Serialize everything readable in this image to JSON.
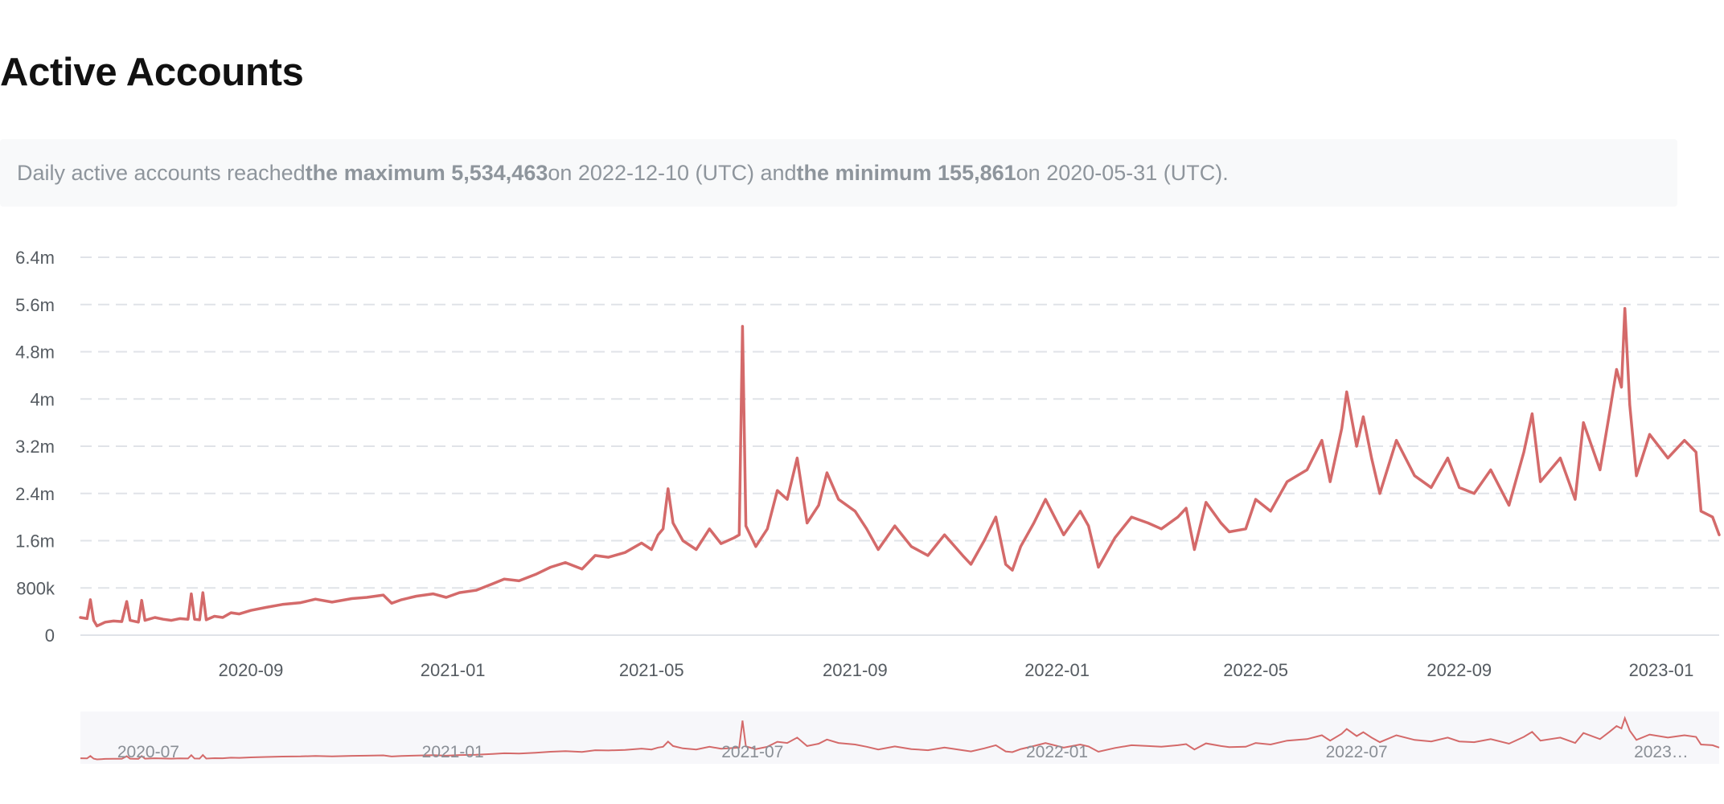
{
  "page": {
    "title": "Active Accounts",
    "summary": {
      "prefix": "Daily active accounts reached ",
      "max_label": "the maximum 5,534,463",
      "max_suffix": " on 2022-12-10 (UTC) and ",
      "min_label": "the minimum 155,861",
      "min_suffix": " on 2020-05-31 (UTC)."
    }
  },
  "colors": {
    "line": "#d46a6a",
    "grid": "#e0e3e8",
    "navigator_bg": "#f7f7fa",
    "navigator_line": "#d46a6a"
  },
  "chart_data": {
    "type": "line",
    "title": "",
    "xlabel": "",
    "ylabel": "",
    "x_range": [
      "2020-05-21",
      "2023-02-05"
    ],
    "ylim": [
      0,
      6400000
    ],
    "y_ticks": [
      0,
      800000,
      1600000,
      2400000,
      3200000,
      4000000,
      4800000,
      5600000,
      6400000
    ],
    "y_tick_labels": [
      "0",
      "800k",
      "1.6m",
      "2.4m",
      "3.2m",
      "4m",
      "4.8m",
      "5.6m",
      "6.4m"
    ],
    "x_ticks": [
      "2020-09-01",
      "2021-01-01",
      "2021-05-01",
      "2021-09-01",
      "2022-01-01",
      "2022-05-01",
      "2022-09-01",
      "2023-01-01"
    ],
    "x_tick_labels": [
      "2020-09",
      "2021-01",
      "2021-05",
      "2021-09",
      "2022-01",
      "2022-05",
      "2022-09",
      "2023-01"
    ],
    "grid": true,
    "series": [
      {
        "points": [
          [
            "2020-05-21",
            300000
          ],
          [
            "2020-05-25",
            280000
          ],
          [
            "2020-05-27",
            600000
          ],
          [
            "2020-05-29",
            250000
          ],
          [
            "2020-05-31",
            155861
          ],
          [
            "2020-06-05",
            220000
          ],
          [
            "2020-06-10",
            240000
          ],
          [
            "2020-06-15",
            230000
          ],
          [
            "2020-06-18",
            570000
          ],
          [
            "2020-06-20",
            250000
          ],
          [
            "2020-06-25",
            220000
          ],
          [
            "2020-06-27",
            590000
          ],
          [
            "2020-06-29",
            250000
          ],
          [
            "2020-07-05",
            300000
          ],
          [
            "2020-07-10",
            270000
          ],
          [
            "2020-07-15",
            250000
          ],
          [
            "2020-07-20",
            280000
          ],
          [
            "2020-07-25",
            270000
          ],
          [
            "2020-07-27",
            700000
          ],
          [
            "2020-07-29",
            270000
          ],
          [
            "2020-08-01",
            260000
          ],
          [
            "2020-08-03",
            720000
          ],
          [
            "2020-08-05",
            260000
          ],
          [
            "2020-08-10",
            320000
          ],
          [
            "2020-08-15",
            300000
          ],
          [
            "2020-08-20",
            380000
          ],
          [
            "2020-08-25",
            360000
          ],
          [
            "2020-09-01",
            420000
          ],
          [
            "2020-09-10",
            470000
          ],
          [
            "2020-09-20",
            520000
          ],
          [
            "2020-10-01",
            550000
          ],
          [
            "2020-10-10",
            610000
          ],
          [
            "2020-10-20",
            560000
          ],
          [
            "2020-11-01",
            620000
          ],
          [
            "2020-11-10",
            640000
          ],
          [
            "2020-11-20",
            680000
          ],
          [
            "2020-11-25",
            540000
          ],
          [
            "2020-12-01",
            600000
          ],
          [
            "2020-12-10",
            660000
          ],
          [
            "2020-12-20",
            700000
          ],
          [
            "2020-12-28",
            640000
          ],
          [
            "2021-01-05",
            720000
          ],
          [
            "2021-01-15",
            760000
          ],
          [
            "2021-01-25",
            870000
          ],
          [
            "2021-02-01",
            950000
          ],
          [
            "2021-02-10",
            920000
          ],
          [
            "2021-02-20",
            1030000
          ],
          [
            "2021-03-01",
            1150000
          ],
          [
            "2021-03-10",
            1230000
          ],
          [
            "2021-03-20",
            1120000
          ],
          [
            "2021-03-28",
            1350000
          ],
          [
            "2021-04-05",
            1320000
          ],
          [
            "2021-04-15",
            1400000
          ],
          [
            "2021-04-25",
            1560000
          ],
          [
            "2021-05-01",
            1450000
          ],
          [
            "2021-05-05",
            1700000
          ],
          [
            "2021-05-08",
            1800000
          ],
          [
            "2021-05-11",
            2480000
          ],
          [
            "2021-05-14",
            1900000
          ],
          [
            "2021-05-20",
            1600000
          ],
          [
            "2021-05-28",
            1450000
          ],
          [
            "2021-06-05",
            1800000
          ],
          [
            "2021-06-12",
            1550000
          ],
          [
            "2021-06-20",
            1650000
          ],
          [
            "2021-06-23",
            1700000
          ],
          [
            "2021-06-25",
            5230000
          ],
          [
            "2021-06-27",
            1850000
          ],
          [
            "2021-07-03",
            1500000
          ],
          [
            "2021-07-10",
            1800000
          ],
          [
            "2021-07-16",
            2450000
          ],
          [
            "2021-07-22",
            2300000
          ],
          [
            "2021-07-28",
            3000000
          ],
          [
            "2021-08-03",
            1900000
          ],
          [
            "2021-08-10",
            2200000
          ],
          [
            "2021-08-15",
            2750000
          ],
          [
            "2021-08-22",
            2300000
          ],
          [
            "2021-09-01",
            2100000
          ],
          [
            "2021-09-08",
            1800000
          ],
          [
            "2021-09-15",
            1450000
          ],
          [
            "2021-09-25",
            1850000
          ],
          [
            "2021-10-05",
            1500000
          ],
          [
            "2021-10-15",
            1350000
          ],
          [
            "2021-10-25",
            1700000
          ],
          [
            "2021-11-05",
            1350000
          ],
          [
            "2021-11-10",
            1200000
          ],
          [
            "2021-11-18",
            1600000
          ],
          [
            "2021-11-25",
            2000000
          ],
          [
            "2021-12-01",
            1200000
          ],
          [
            "2021-12-05",
            1100000
          ],
          [
            "2021-12-10",
            1500000
          ],
          [
            "2021-12-18",
            1900000
          ],
          [
            "2021-12-25",
            2300000
          ],
          [
            "2022-01-05",
            1700000
          ],
          [
            "2022-01-15",
            2100000
          ],
          [
            "2022-01-20",
            1850000
          ],
          [
            "2022-01-26",
            1150000
          ],
          [
            "2022-02-05",
            1650000
          ],
          [
            "2022-02-15",
            2000000
          ],
          [
            "2022-02-25",
            1900000
          ],
          [
            "2022-03-05",
            1800000
          ],
          [
            "2022-03-15",
            2000000
          ],
          [
            "2022-03-20",
            2150000
          ],
          [
            "2022-03-25",
            1450000
          ],
          [
            "2022-04-01",
            2250000
          ],
          [
            "2022-04-10",
            1900000
          ],
          [
            "2022-04-15",
            1750000
          ],
          [
            "2022-04-25",
            1800000
          ],
          [
            "2022-05-01",
            2300000
          ],
          [
            "2022-05-10",
            2100000
          ],
          [
            "2022-05-20",
            2600000
          ],
          [
            "2022-06-01",
            2800000
          ],
          [
            "2022-06-10",
            3300000
          ],
          [
            "2022-06-15",
            2600000
          ],
          [
            "2022-06-22",
            3500000
          ],
          [
            "2022-06-25",
            4120000
          ],
          [
            "2022-07-01",
            3200000
          ],
          [
            "2022-07-05",
            3700000
          ],
          [
            "2022-07-10",
            3000000
          ],
          [
            "2022-07-15",
            2400000
          ],
          [
            "2022-07-25",
            3300000
          ],
          [
            "2022-08-05",
            2700000
          ],
          [
            "2022-08-15",
            2500000
          ],
          [
            "2022-08-25",
            3000000
          ],
          [
            "2022-09-01",
            2500000
          ],
          [
            "2022-09-10",
            2400000
          ],
          [
            "2022-09-20",
            2800000
          ],
          [
            "2022-10-01",
            2200000
          ],
          [
            "2022-10-10",
            3100000
          ],
          [
            "2022-10-15",
            3750000
          ],
          [
            "2022-10-20",
            2600000
          ],
          [
            "2022-11-01",
            3000000
          ],
          [
            "2022-11-10",
            2300000
          ],
          [
            "2022-11-15",
            3600000
          ],
          [
            "2022-11-25",
            2800000
          ],
          [
            "2022-12-01",
            3800000
          ],
          [
            "2022-12-05",
            4500000
          ],
          [
            "2022-12-08",
            4200000
          ],
          [
            "2022-12-10",
            5534463
          ],
          [
            "2022-12-13",
            3900000
          ],
          [
            "2022-12-17",
            2700000
          ],
          [
            "2022-12-25",
            3400000
          ],
          [
            "2023-01-05",
            3000000
          ],
          [
            "2023-01-15",
            3300000
          ],
          [
            "2023-01-22",
            3100000
          ],
          [
            "2023-01-25",
            2100000
          ],
          [
            "2023-02-01",
            2000000
          ],
          [
            "2023-02-05",
            1700000
          ]
        ]
      }
    ],
    "navigator": {
      "tick_labels": [
        "2020-07",
        "2021-01",
        "2021-07",
        "2022-01",
        "2022-07",
        "2023…"
      ],
      "ticks": [
        "2020-07-01",
        "2021-01-01",
        "2021-07-01",
        "2022-01-01",
        "2022-07-01",
        "2023-01-01"
      ]
    }
  }
}
